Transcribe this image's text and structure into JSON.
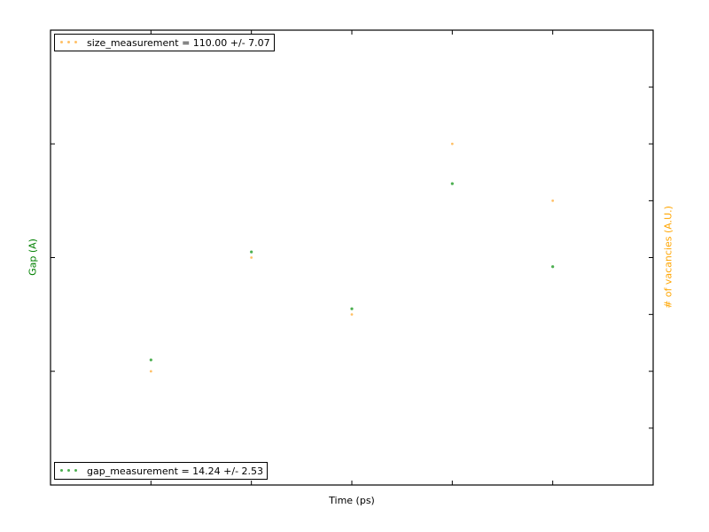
{
  "chart_data": {
    "type": "scatter",
    "xlabel": "Time (ps)",
    "ylabel_left": "Gap (A)",
    "ylabel_right": "# of vacancies (A.U.)",
    "xlim": [
      0,
      6
    ],
    "ylim_left": [
      0,
      8
    ],
    "ylim_right": [
      0,
      8
    ],
    "grid": false,
    "series": [
      {
        "name": "gap_measurement = 14.24 +/- 2.53",
        "axis": "left",
        "color": "#4caf50",
        "x": [
          1,
          2,
          3,
          4,
          5
        ],
        "y": [
          2.2,
          4.1,
          3.1,
          5.3,
          3.84
        ]
      },
      {
        "name": "size_measurement = 110.00 +/- 7.07",
        "axis": "right",
        "color": "#ffc067",
        "x": [
          1,
          2,
          3,
          4,
          5
        ],
        "y": [
          2.0,
          4.0,
          3.0,
          6.0,
          5.0
        ]
      }
    ],
    "legends": [
      {
        "series_index": 1,
        "location": "upper-left"
      },
      {
        "series_index": 0,
        "location": "lower-left"
      }
    ]
  },
  "colors": {
    "left_axis_label": "#008000",
    "right_axis_label": "#ffa500",
    "frame": "#000000"
  }
}
